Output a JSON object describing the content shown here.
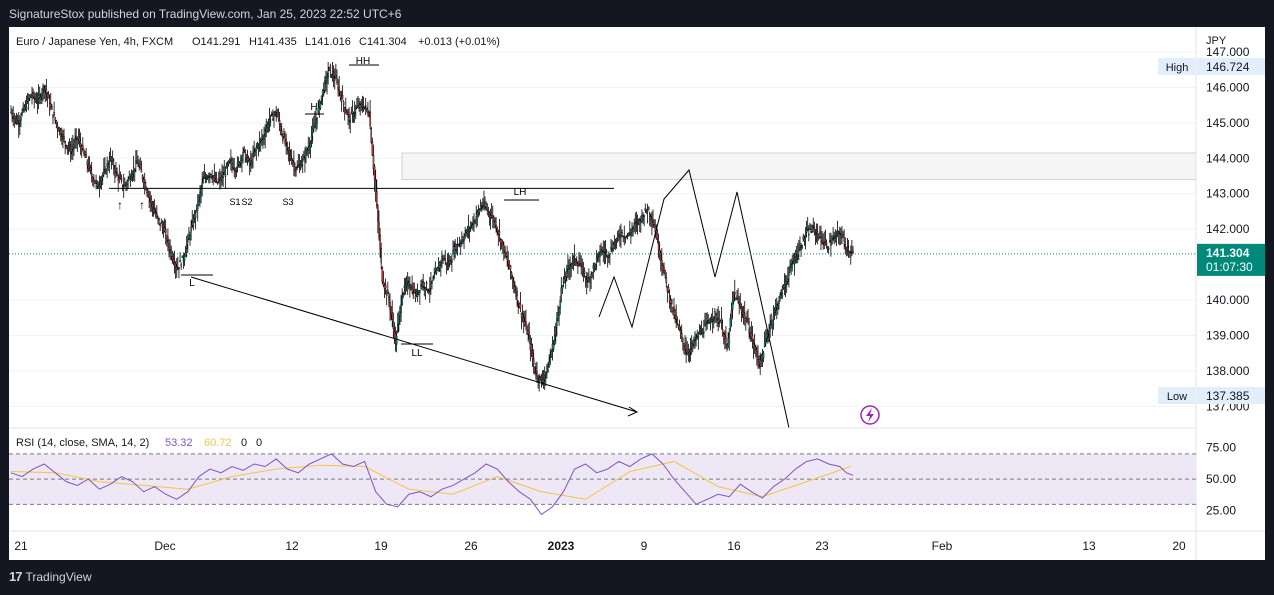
{
  "publish_text": "SignatureStox published on TradingView.com, Jan 25, 2023 22:52 UTC+6",
  "brand": {
    "logo": "17",
    "name": "TradingView"
  },
  "legend": {
    "symbol": "Euro / Japanese Yen, 4h, FXCM",
    "open": "O141.291",
    "high": "H141.435",
    "low": "L141.016",
    "close": "C141.304",
    "change": "+0.013 (+0.01%)"
  },
  "rsi_legend": {
    "title": "RSI (14, close, SMA, 14, 2)",
    "value": "53.32",
    "sma_value": "60.72",
    "extra1": "0",
    "extra2": "0"
  },
  "price_axis": {
    "currency": "JPY",
    "high_label": "High",
    "high_value": "146.724",
    "low_label": "Low",
    "low_value": "137.385",
    "last_price": "141.304",
    "countdown": "01:07:30",
    "ticks": [
      "147.000",
      "146.000",
      "145.000",
      "144.000",
      "143.000",
      "142.000",
      "140.000",
      "139.000",
      "138.000",
      "137.000"
    ]
  },
  "rsi_axis": {
    "ticks": [
      "75.00",
      "50.00",
      "25.00"
    ]
  },
  "time_axis": {
    "ticks": [
      "21",
      "Dec",
      "12",
      "19",
      "26",
      "2023",
      "9",
      "16",
      "23",
      "Feb",
      "13",
      "20"
    ]
  },
  "annotations": {
    "hh": "HH",
    "h": "H",
    "lh": "LH",
    "l": "L",
    "ll": "LL",
    "s1": "S1",
    "s2": "S2",
    "s3": "S3"
  },
  "colors": {
    "up": "#26a69a",
    "down": "#ef5350",
    "candle_outline": "#000000",
    "rsi_line": "#7e57c2",
    "rsi_sma": "#f5c542",
    "rsi_band": "#ede7f6",
    "last_price": "#00897b",
    "drawing": "#000000"
  },
  "chart_data": {
    "type": "candlestick",
    "symbol": "Euro / Japanese Yen",
    "timeframe": "4h",
    "ylim": [
      136.7,
      147.0
    ],
    "rsi_ylim": [
      12,
      85
    ],
    "high": 146.724,
    "low": 137.385,
    "last": 141.304,
    "resistance_zone": [
      143.4,
      144.15
    ],
    "support_line": 143.15,
    "pivots": [
      {
        "label": "L",
        "value": 140.72
      },
      {
        "label": "H",
        "value": 145.35
      },
      {
        "label": "HH",
        "value": 146.55
      },
      {
        "label": "LH",
        "value": 142.9
      },
      {
        "label": "LL",
        "value": 138.8
      }
    ],
    "path_points": [
      [
        0,
        145.3
      ],
      [
        6,
        145.0
      ],
      [
        12,
        145.4
      ],
      [
        18,
        145.8
      ],
      [
        24,
        145.6
      ],
      [
        30,
        146.05
      ],
      [
        36,
        145.4
      ],
      [
        42,
        144.9
      ],
      [
        48,
        144.5
      ],
      [
        54,
        144.2
      ],
      [
        60,
        144.6
      ],
      [
        66,
        144.1
      ],
      [
        72,
        143.6
      ],
      [
        78,
        143.2
      ],
      [
        84,
        143.6
      ],
      [
        90,
        144.0
      ],
      [
        96,
        143.5
      ],
      [
        102,
        143.2
      ],
      [
        108,
        143.5
      ],
      [
        114,
        143.9
      ],
      [
        120,
        143.4
      ],
      [
        126,
        142.8
      ],
      [
        132,
        142.3
      ],
      [
        138,
        142.0
      ],
      [
        144,
        141.4
      ],
      [
        150,
        140.9
      ],
      [
        156,
        141.2
      ],
      [
        162,
        141.9
      ],
      [
        168,
        142.6
      ],
      [
        174,
        143.4
      ],
      [
        180,
        143.6
      ],
      [
        186,
        143.3
      ],
      [
        192,
        143.5
      ],
      [
        198,
        143.9
      ],
      [
        204,
        143.7
      ],
      [
        210,
        144.2
      ],
      [
        216,
        143.8
      ],
      [
        222,
        144.3
      ],
      [
        228,
        144.6
      ],
      [
        234,
        145.1
      ],
      [
        240,
        145.3
      ],
      [
        246,
        144.6
      ],
      [
        252,
        144.1
      ],
      [
        258,
        143.7
      ],
      [
        264,
        143.9
      ],
      [
        270,
        144.4
      ],
      [
        276,
        145.1
      ],
      [
        282,
        145.9
      ],
      [
        288,
        146.5
      ],
      [
        294,
        146.2
      ],
      [
        300,
        145.6
      ],
      [
        306,
        145.1
      ],
      [
        312,
        145.4
      ],
      [
        318,
        145.5
      ],
      [
        324,
        145.3
      ],
      [
        330,
        143.0
      ],
      [
        336,
        140.6
      ],
      [
        342,
        140.0
      ],
      [
        348,
        138.8
      ],
      [
        354,
        140.2
      ],
      [
        360,
        140.5
      ],
      [
        366,
        140.1
      ],
      [
        372,
        140.5
      ],
      [
        378,
        140.3
      ],
      [
        384,
        140.7
      ],
      [
        390,
        141.2
      ],
      [
        396,
        141.0
      ],
      [
        402,
        141.5
      ],
      [
        408,
        141.7
      ],
      [
        414,
        142.0
      ],
      [
        420,
        142.3
      ],
      [
        426,
        142.7
      ],
      [
        432,
        142.5
      ],
      [
        438,
        142.2
      ],
      [
        444,
        141.6
      ],
      [
        450,
        141.0
      ],
      [
        456,
        140.3
      ],
      [
        462,
        139.6
      ],
      [
        468,
        139.0
      ],
      [
        474,
        138.0
      ],
      [
        480,
        137.7
      ],
      [
        486,
        138.1
      ],
      [
        492,
        139.0
      ],
      [
        498,
        140.3
      ],
      [
        504,
        140.9
      ],
      [
        510,
        141.2
      ],
      [
        516,
        140.9
      ],
      [
        522,
        140.5
      ],
      [
        528,
        141.0
      ],
      [
        534,
        141.4
      ],
      [
        540,
        141.3
      ],
      [
        546,
        141.6
      ],
      [
        552,
        141.9
      ],
      [
        558,
        141.8
      ],
      [
        564,
        142.1
      ],
      [
        570,
        142.3
      ],
      [
        576,
        142.6
      ],
      [
        582,
        142.1
      ],
      [
        588,
        141.2
      ],
      [
        594,
        140.3
      ],
      [
        600,
        139.6
      ],
      [
        606,
        139.0
      ],
      [
        612,
        138.5
      ],
      [
        618,
        138.8
      ],
      [
        624,
        139.1
      ],
      [
        630,
        139.3
      ],
      [
        636,
        139.6
      ],
      [
        642,
        139.4
      ],
      [
        648,
        138.6
      ],
      [
        654,
        140.2
      ],
      [
        660,
        139.8
      ],
      [
        666,
        139.4
      ],
      [
        672,
        138.7
      ],
      [
        678,
        138.2
      ],
      [
        684,
        139.0
      ],
      [
        690,
        139.6
      ],
      [
        696,
        140.1
      ],
      [
        702,
        140.6
      ],
      [
        708,
        141.1
      ],
      [
        714,
        141.5
      ],
      [
        720,
        141.9
      ],
      [
        726,
        142.0
      ],
      [
        732,
        141.8
      ],
      [
        738,
        141.5
      ],
      [
        744,
        141.7
      ],
      [
        750,
        141.9
      ],
      [
        756,
        141.5
      ],
      [
        762,
        141.3
      ]
    ],
    "rsi_points": [
      [
        0,
        55
      ],
      [
        10,
        52
      ],
      [
        20,
        58
      ],
      [
        30,
        62
      ],
      [
        40,
        55
      ],
      [
        50,
        48
      ],
      [
        60,
        45
      ],
      [
        70,
        50
      ],
      [
        80,
        42
      ],
      [
        90,
        46
      ],
      [
        100,
        52
      ],
      [
        110,
        48
      ],
      [
        120,
        40
      ],
      [
        130,
        44
      ],
      [
        140,
        38
      ],
      [
        150,
        34
      ],
      [
        160,
        40
      ],
      [
        170,
        52
      ],
      [
        180,
        58
      ],
      [
        190,
        55
      ],
      [
        200,
        60
      ],
      [
        210,
        57
      ],
      [
        220,
        62
      ],
      [
        230,
        60
      ],
      [
        240,
        66
      ],
      [
        250,
        58
      ],
      [
        260,
        55
      ],
      [
        270,
        62
      ],
      [
        280,
        66
      ],
      [
        290,
        70
      ],
      [
        300,
        62
      ],
      [
        310,
        60
      ],
      [
        320,
        64
      ],
      [
        330,
        40
      ],
      [
        340,
        30
      ],
      [
        350,
        28
      ],
      [
        360,
        38
      ],
      [
        370,
        40
      ],
      [
        380,
        36
      ],
      [
        390,
        42
      ],
      [
        400,
        45
      ],
      [
        410,
        50
      ],
      [
        420,
        55
      ],
      [
        430,
        62
      ],
      [
        440,
        58
      ],
      [
        450,
        48
      ],
      [
        460,
        40
      ],
      [
        470,
        34
      ],
      [
        480,
        22
      ],
      [
        490,
        28
      ],
      [
        500,
        40
      ],
      [
        510,
        58
      ],
      [
        520,
        62
      ],
      [
        530,
        55
      ],
      [
        540,
        58
      ],
      [
        550,
        64
      ],
      [
        560,
        60
      ],
      [
        570,
        66
      ],
      [
        580,
        70
      ],
      [
        590,
        62
      ],
      [
        600,
        50
      ],
      [
        610,
        40
      ],
      [
        620,
        30
      ],
      [
        630,
        34
      ],
      [
        640,
        38
      ],
      [
        650,
        36
      ],
      [
        660,
        46
      ],
      [
        670,
        40
      ],
      [
        680,
        35
      ],
      [
        690,
        44
      ],
      [
        700,
        50
      ],
      [
        710,
        58
      ],
      [
        720,
        64
      ],
      [
        730,
        66
      ],
      [
        740,
        62
      ],
      [
        750,
        60
      ],
      [
        756,
        55
      ],
      [
        762,
        53
      ]
    ],
    "rsi_sma_points": [
      [
        0,
        56
      ],
      [
        40,
        55
      ],
      [
        80,
        48
      ],
      [
        120,
        45
      ],
      [
        160,
        42
      ],
      [
        200,
        52
      ],
      [
        240,
        58
      ],
      [
        280,
        61
      ],
      [
        320,
        60
      ],
      [
        360,
        42
      ],
      [
        400,
        38
      ],
      [
        440,
        52
      ],
      [
        480,
        40
      ],
      [
        520,
        34
      ],
      [
        560,
        56
      ],
      [
        600,
        64
      ],
      [
        640,
        44
      ],
      [
        680,
        36
      ],
      [
        720,
        48
      ],
      [
        760,
        60
      ]
    ],
    "rsi_levels": [
      70,
      50,
      30
    ]
  }
}
